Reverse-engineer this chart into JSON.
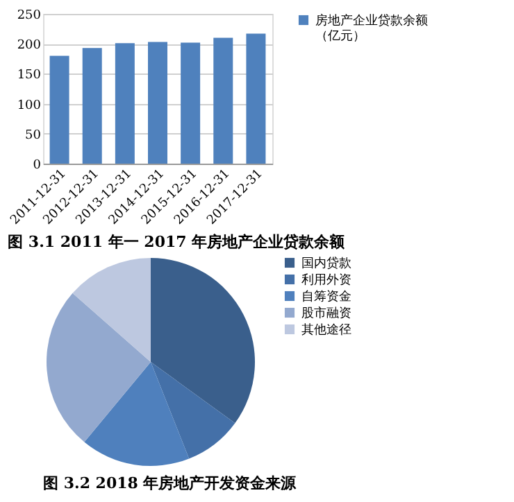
{
  "chart_data": [
    {
      "type": "bar",
      "title": "图 3.1 2011 年一 2017 年房地产企业贷款余额",
      "categories": [
        "2011-12-31",
        "2012-12-31",
        "2013-12-31",
        "2014-12-31",
        "2015-12-31",
        "2016-12-31",
        "2017-12-31"
      ],
      "series": [
        {
          "name": "房地产企业贷款余额（亿元）",
          "color": "#4f81bd",
          "values": [
            180,
            193,
            201,
            203,
            202,
            210,
            217
          ]
        }
      ],
      "ylim": [
        0,
        250
      ],
      "yticks": [
        0,
        50,
        100,
        150,
        200,
        250
      ],
      "grid": "y",
      "legend": "right"
    },
    {
      "type": "pie",
      "title": "图 3.2   2018 年房地产开发资金来源",
      "categories": [
        "国内贷款",
        "利用外资",
        "自筹资金",
        "股市融资",
        "其他途径"
      ],
      "values": [
        35,
        9,
        17,
        25.5,
        13.5
      ],
      "colors": [
        "#3a5f8c",
        "#4470a8",
        "#4f80bd",
        "#93a9cf",
        "#bdc8e0"
      ],
      "legend": "right"
    }
  ]
}
